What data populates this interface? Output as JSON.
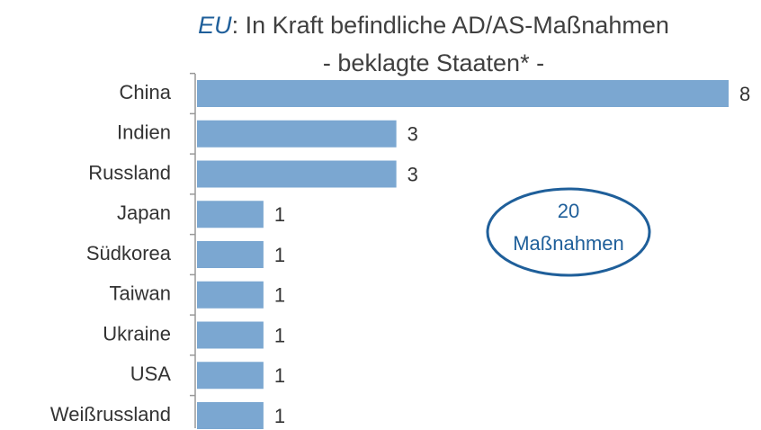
{
  "chart_data": {
    "type": "bar",
    "orientation": "horizontal",
    "title": {
      "emphasis": "EU",
      "text": ": In Kraft befindliche AD/AS-Maßnahmen"
    },
    "subtitle": "- beklagte Staaten* -",
    "categories": [
      "China",
      "Indien",
      "Russland",
      "Japan",
      "Südkorea",
      "Taiwan",
      "Ukraine",
      "USA",
      "Weißrussland"
    ],
    "values": [
      8,
      3,
      3,
      1,
      1,
      1,
      1,
      1,
      1
    ],
    "color": "#7ba7d1",
    "xlim": [
      0,
      8
    ],
    "annotation": [
      "20",
      "Maßnahmen"
    ]
  }
}
